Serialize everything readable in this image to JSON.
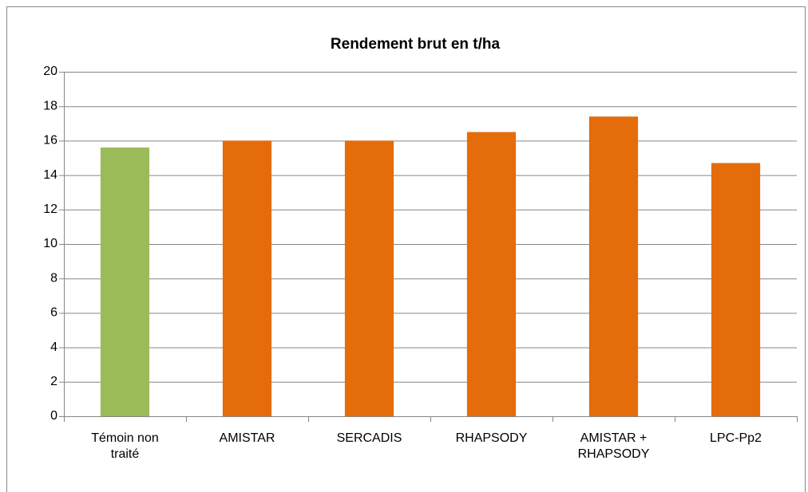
{
  "chart_data": {
    "type": "bar",
    "title": "Rendement brut en t/ha",
    "categories": [
      "Témoin non traité",
      "AMISTAR",
      "SERCADIS",
      "RHAPSODY",
      "AMISTAR + RHAPSODY",
      "LPC-Pp2"
    ],
    "values": [
      15.6,
      16.0,
      16.0,
      16.5,
      17.4,
      14.7
    ],
    "colors": [
      "#9bbb59",
      "#e46c0a",
      "#e46c0a",
      "#e46c0a",
      "#e46c0a",
      "#e46c0a"
    ],
    "ylim": [
      0,
      20
    ],
    "yticks": [
      0,
      2,
      4,
      6,
      8,
      10,
      12,
      14,
      16,
      18,
      20
    ],
    "grid": true
  }
}
